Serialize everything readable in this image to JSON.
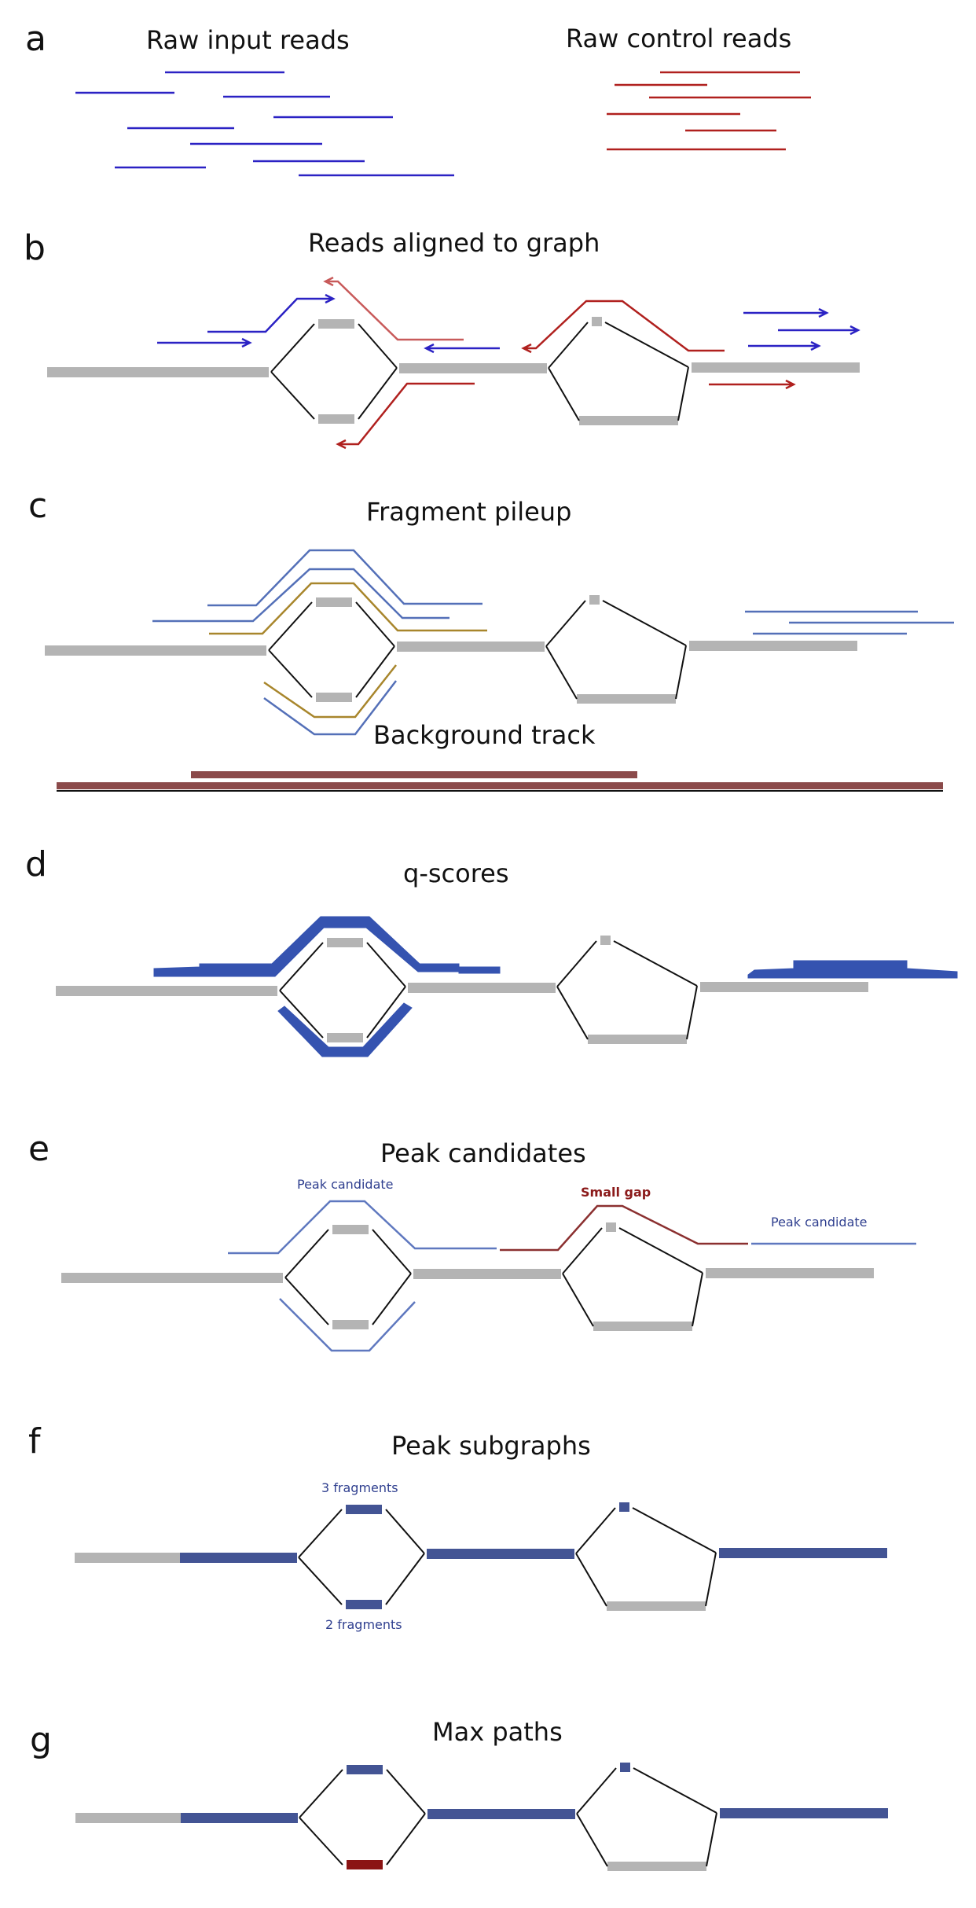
{
  "colors": {
    "input_read": "#2b22c4",
    "control_read": "#b0201e",
    "control_read_light": "#c85a5a",
    "pileup_blue": "#5470b8",
    "pileup_gold": "#a8862c",
    "background_track": "#8b4a4a",
    "qscore_blue": "#3553b0",
    "peak_blue": "#5f78bf",
    "gap_red": "#8b3030",
    "subgraph_node": "#435494",
    "maxpath_red": "#8b1414",
    "graph_node": "#b4b4b4",
    "edge": "#111111"
  },
  "panels": {
    "a": {
      "letter": "a",
      "input_title": "Raw input reads",
      "control_title": "Raw control reads"
    },
    "b": {
      "letter": "b",
      "title": "Reads aligned to graph"
    },
    "c": {
      "letter": "c",
      "title": "Fragment pileup",
      "background_title": "Background track"
    },
    "d": {
      "letter": "d",
      "title": "q-scores"
    },
    "e": {
      "letter": "e",
      "title": "Peak candidates",
      "label_left": "Peak candidate",
      "label_gap": "Small gap",
      "label_right": "Peak candidate"
    },
    "f": {
      "letter": "f",
      "title": "Peak subgraphs",
      "label_top": "3 fragments",
      "label_bottom": "2 fragments"
    },
    "g": {
      "letter": "g",
      "title": "Max paths"
    }
  }
}
